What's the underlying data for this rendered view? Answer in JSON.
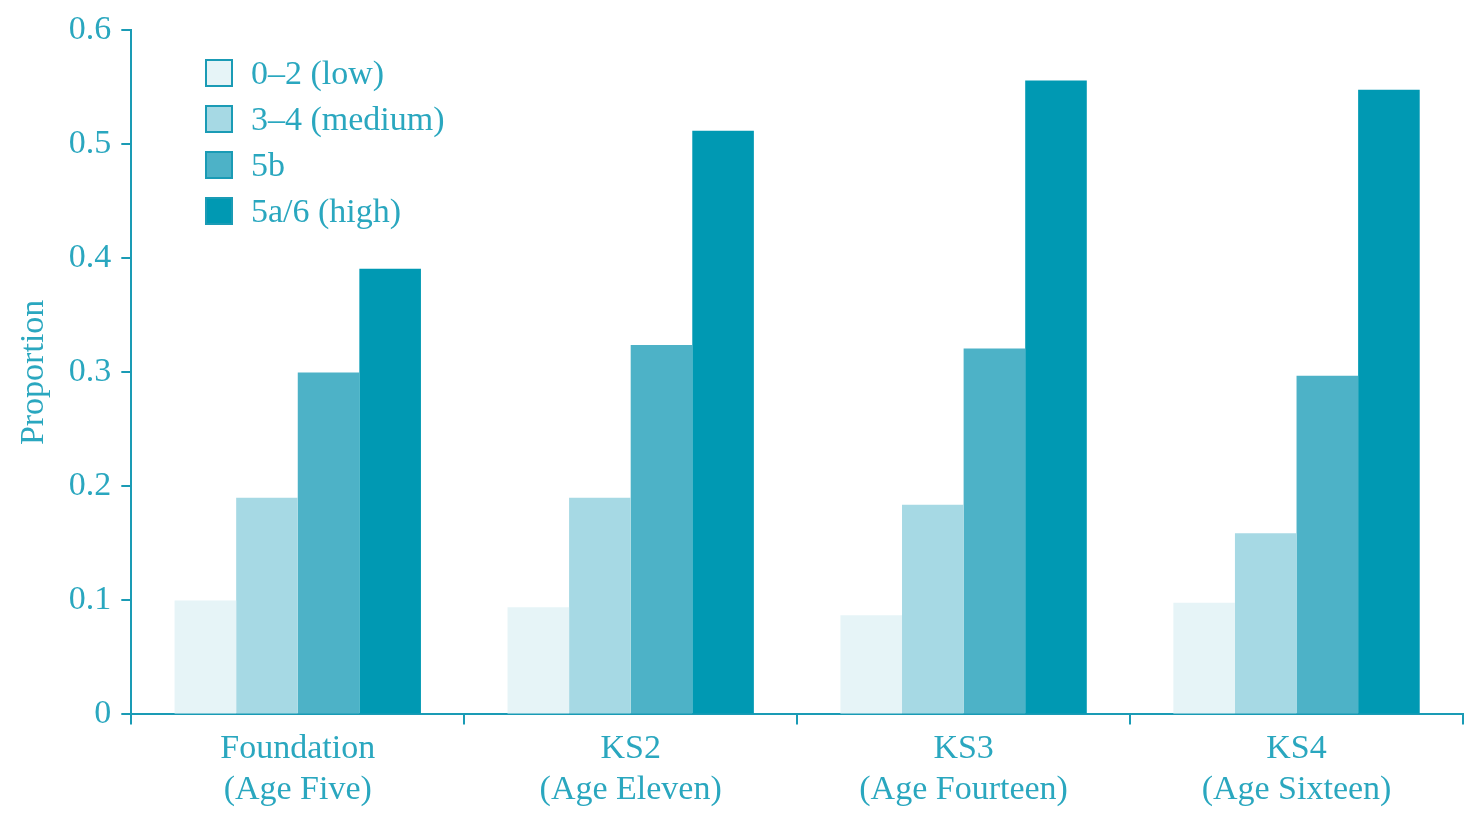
{
  "chart_data": {
    "type": "bar",
    "ylabel": "Proportion",
    "categories": [
      "Foundation\n(Age Five)",
      "KS2\n(Age Eleven)",
      "KS3\n(Age Fourteen)",
      "KS4\n(Age Sixteen)"
    ],
    "series": [
      {
        "name": "0–2 (low)",
        "color": "#e6f4f7",
        "values": [
          0.1,
          0.094,
          0.087,
          0.098
        ]
      },
      {
        "name": "3–4 (medium)",
        "color": "#a6d9e4",
        "values": [
          0.19,
          0.19,
          0.184,
          0.159
        ]
      },
      {
        "name": "5b",
        "color": "#4db2c7",
        "values": [
          0.3,
          0.324,
          0.321,
          0.297
        ]
      },
      {
        "name": "5a/6 (high)",
        "color": "#0099b3",
        "values": [
          0.391,
          0.512,
          0.556,
          0.548
        ]
      }
    ],
    "ylim": [
      0,
      0.6
    ],
    "yticks": [
      0,
      0.1,
      0.2,
      0.3,
      0.4,
      0.5,
      0.6
    ],
    "grid": false,
    "legend": "top left"
  }
}
